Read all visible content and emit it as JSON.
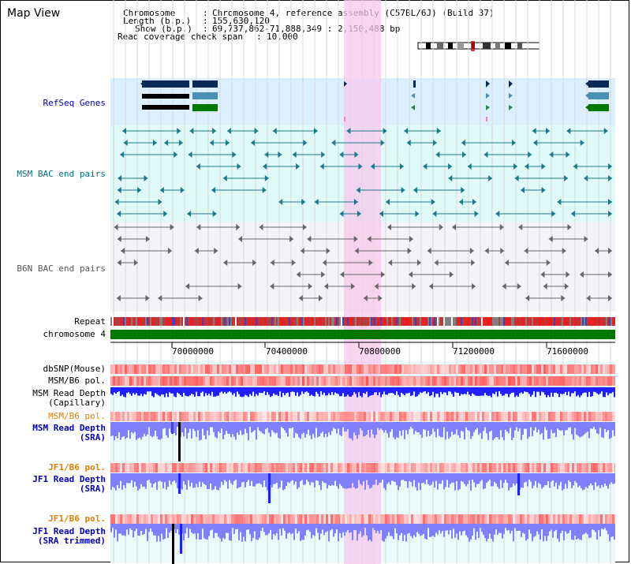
{
  "title": "Map View",
  "header": {
    "chromosome_label": "Chromosome",
    "chromosome_value": "Chromosome 4, reference assembly (C57BL/6J) (Build 37)",
    "length_label": "Length (b.p.)",
    "length_value": "155,630,120",
    "show_label": "Show (b.p.)",
    "show_value": "69,737,862-71,888,349 : 2,150,488 bp",
    "span_label": "Read coverage check span",
    "span_value": "10,000"
  },
  "tracks": {
    "refseq": "RefSeq Genes",
    "msm_bac": "MSM BAC end pairs",
    "b6n_bac": "B6N BAC end pairs",
    "repeat": "Repeat",
    "chromosome": "chromosome 4",
    "dbsnp": "dbSNP(Mouse)",
    "msm_b6_pol_1": "MSM/B6 pol.",
    "msm_read_depth_cap": "MSM Read Depth",
    "msm_read_depth_cap_sub": "(Capillary)",
    "msm_b6_pol_2": "MSM/B6 pol.",
    "msm_read_depth_sra": "MSM Read Depth",
    "msm_read_depth_sra_sub": "(SRA)",
    "jf1_b6_pol_1": "JF1/B6 pol.",
    "jf1_read_depth_sra": "JF1 Read Depth",
    "jf1_read_depth_sra_sub": "(SRA)",
    "jf1_b6_pol_2": "JF1/B6 pol.",
    "jf1_read_depth_trim": "JF1 Read Depth",
    "jf1_read_depth_trim_sub": "(SRA trimmed)"
  },
  "axis_ticks": [
    "70000000",
    "70400000",
    "70800000",
    "71200000",
    "71600000"
  ],
  "colors": {
    "refseq_bg": "#dcefff",
    "msm_bg": "#e0fafa",
    "b6n_bg": "#f4f4f8",
    "highlight": "#f5c8ec",
    "chromosome_bar": "#007800",
    "depth_blue": "#2020ff",
    "depth_light": "#8080ff"
  }
}
